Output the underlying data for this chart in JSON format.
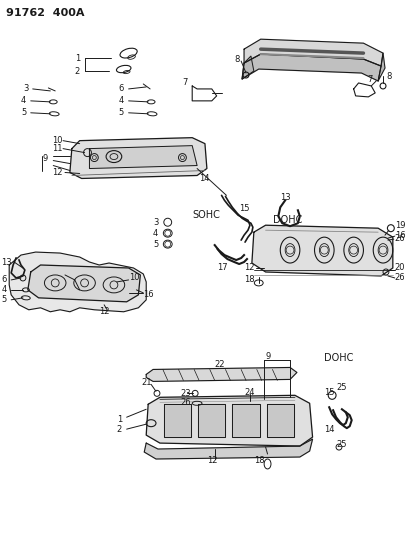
{
  "title": "91762  400A",
  "bg_color": "#ffffff",
  "line_color": "#1a1a1a",
  "figsize": [
    4.08,
    5.33
  ],
  "dpi": 100,
  "sohc_label": "SOHC",
  "dohc_label1": "DOHC",
  "dohc_label2": "DOHC"
}
